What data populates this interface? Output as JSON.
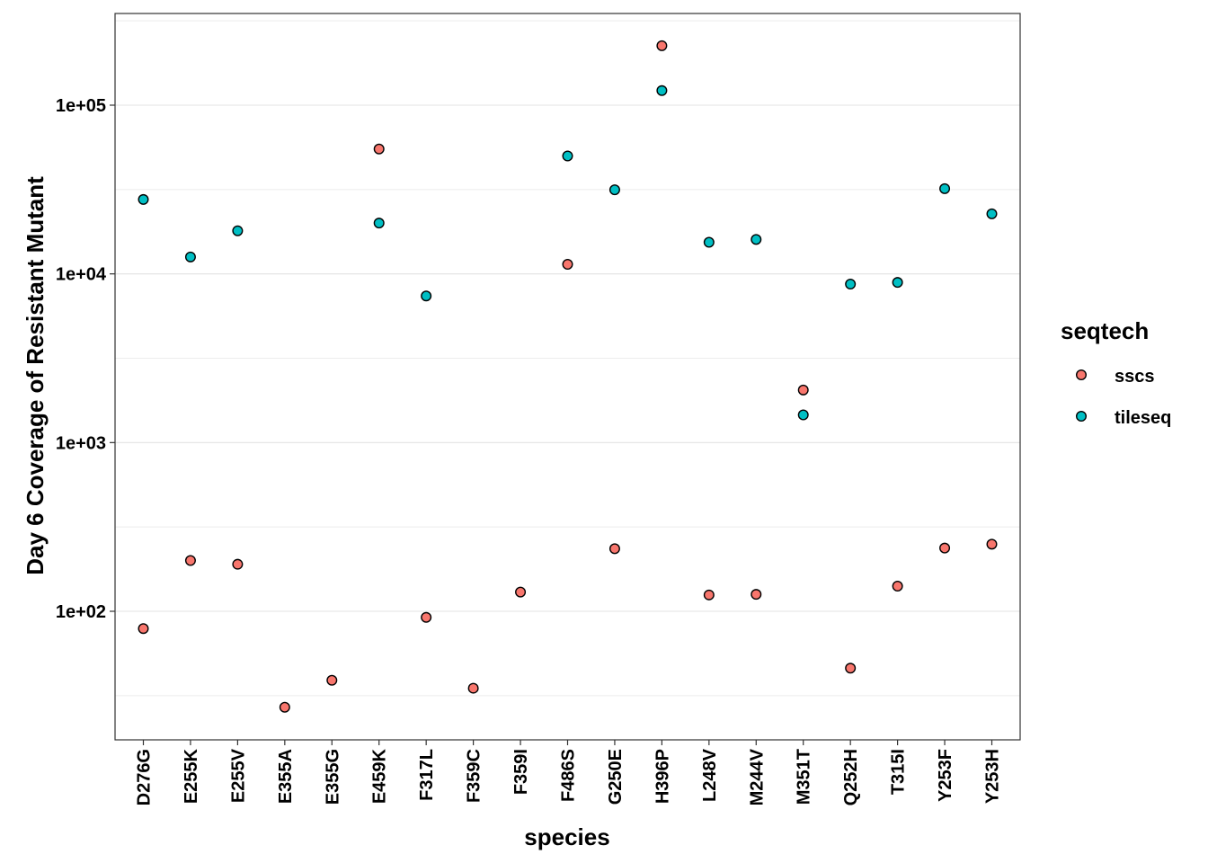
{
  "chart_data": {
    "type": "scatter",
    "xlabel": "species",
    "ylabel": "Day 6 Coverage of Resistant Mutant",
    "y_scale": "log10",
    "ylim": [
      18,
      350000
    ],
    "y_ticks": [
      100,
      1000,
      10000,
      100000
    ],
    "y_tick_labels": [
      "1e+02",
      "1e+03",
      "1e+04",
      "1e+05"
    ],
    "grid": "horizontal",
    "legend_position": "right",
    "legend_title": "seqtech",
    "categories": [
      "D276G",
      "E255K",
      "E255V",
      "E355A",
      "E355G",
      "E459K",
      "F317L",
      "F359C",
      "F359I",
      "F486S",
      "G250E",
      "H396P",
      "L248V",
      "M244V",
      "M351T",
      "Q252H",
      "T315I",
      "Y253F",
      "Y253H"
    ],
    "series": [
      {
        "name": "sscs",
        "color": "#F8766D",
        "values": [
          79,
          200,
          190,
          27,
          39,
          55000,
          92,
          35,
          130,
          11400,
          235,
          225000,
          125,
          126,
          2050,
          46,
          141,
          237,
          250
        ]
      },
      {
        "name": "tileseq",
        "color": "#00BFC4",
        "values": [
          27600,
          12600,
          18000,
          null,
          null,
          20000,
          7400,
          null,
          null,
          50000,
          31500,
          122000,
          15400,
          16000,
          1460,
          8700,
          8900,
          32000,
          22700
        ]
      }
    ]
  }
}
